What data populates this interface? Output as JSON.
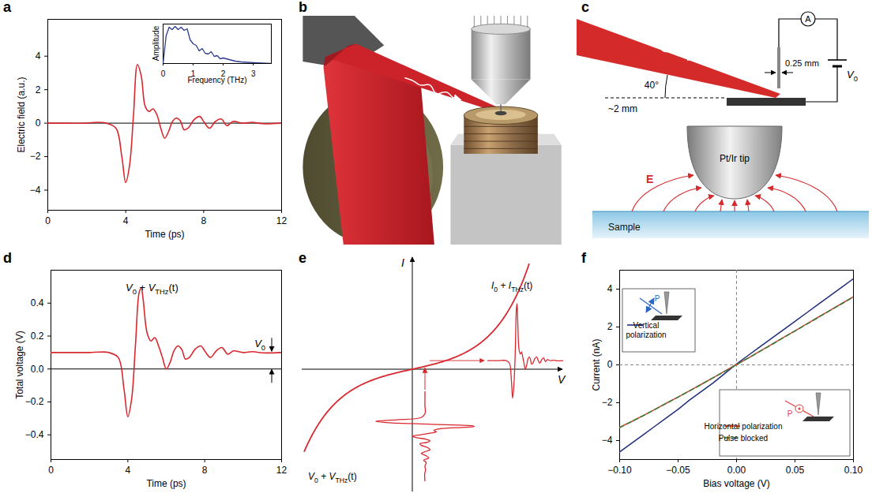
{
  "panel_labels": [
    "a",
    "b",
    "c",
    "d",
    "e",
    "f"
  ],
  "chart_data": [
    {
      "type": "line",
      "x_label": "Time (ps)",
      "y_label": "Electric field (a.u.)",
      "x": [
        0,
        1,
        2,
        2.5,
        3,
        3.5,
        3.8,
        4.0,
        4.2,
        4.4,
        4.6,
        4.8,
        5.0,
        5.2,
        5.4,
        5.6,
        5.8,
        6.0,
        6.2,
        6.4,
        6.6,
        6.8,
        7.0,
        7.2,
        7.5,
        7.8,
        8.0,
        8.3,
        8.6,
        8.9,
        9.2,
        9.5,
        10,
        10.5,
        11,
        12
      ],
      "values": [
        0,
        0,
        0,
        0.05,
        0,
        -0.3,
        -2.0,
        -3.55,
        -2.5,
        0.5,
        3.5,
        2.8,
        1.0,
        0.7,
        0.85,
        0.5,
        -0.3,
        -0.9,
        -0.5,
        0.1,
        0.3,
        0.15,
        -0.4,
        -0.3,
        0.2,
        0.4,
        0.1,
        -0.3,
        0.1,
        0.25,
        -0.15,
        0.1,
        0,
        0.05,
        -0.03,
        0
      ],
      "color": "#d8282f",
      "xlim": [
        0,
        12
      ],
      "xticks": [
        0,
        4,
        8,
        12
      ],
      "ylim": [
        -5.2,
        6.2
      ],
      "yticks": [
        {
          "value": -4,
          "label": "−4"
        },
        {
          "value": -2,
          "label": "−2"
        },
        0,
        2,
        4
      ]
    },
    {
      "type": "line",
      "x_label": "Frequency (THz)",
      "y_label": "Amplitude",
      "x": [
        0,
        0.1,
        0.2,
        0.3,
        0.4,
        0.5,
        0.6,
        0.7,
        0.8,
        0.9,
        1.0,
        1.1,
        1.2,
        1.3,
        1.4,
        1.5,
        1.6,
        1.7,
        1.8,
        1.9,
        2.0,
        2.2,
        2.4,
        2.6,
        2.8,
        3.0,
        3.3,
        3.6
      ],
      "values": [
        0,
        3.5,
        4.6,
        4.3,
        4.7,
        4.3,
        4.6,
        4.2,
        4.4,
        3.0,
        2.5,
        2.3,
        1.6,
        1.9,
        1.3,
        1.2,
        1.5,
        0.9,
        1.0,
        0.6,
        0.7,
        0.5,
        0.3,
        0.2,
        0.15,
        0.1,
        0.05,
        0
      ],
      "color": "#2e3d8f",
      "xlim": [
        0,
        3.6
      ],
      "xticks": [
        0,
        1,
        2,
        3
      ],
      "ylim": [
        0,
        5
      ],
      "tick_labels": "x"
    },
    {
      "type": "line",
      "x_label": "Time (ps)",
      "y_label": "Total voltage (V)",
      "annotations": [
        "V0 + VTHz(t)",
        "V0"
      ],
      "x": [
        0,
        1,
        2,
        2.5,
        3,
        3.5,
        3.8,
        4.0,
        4.2,
        4.4,
        4.6,
        4.7,
        4.8,
        5.0,
        5.2,
        5.4,
        5.6,
        5.8,
        6.0,
        6.2,
        6.4,
        6.6,
        6.8,
        7.0,
        7.2,
        7.5,
        7.8,
        8.0,
        8.3,
        8.6,
        8.9,
        9.2,
        9.5,
        10,
        10.5,
        11,
        12
      ],
      "values": [
        0.1,
        0.1,
        0.1,
        0.103,
        0.1,
        0.07,
        -0.12,
        -0.29,
        -0.18,
        0.15,
        0.47,
        0.49,
        0.42,
        0.22,
        0.17,
        0.19,
        0.14,
        0.07,
        0.0,
        0.04,
        0.11,
        0.14,
        0.12,
        0.06,
        0.07,
        0.12,
        0.14,
        0.11,
        0.07,
        0.11,
        0.13,
        0.09,
        0.11,
        0.1,
        0.105,
        0.098,
        0.1
      ],
      "color": "#d8282f",
      "xlim": [
        0,
        12
      ],
      "xticks": [
        0,
        4,
        8,
        12
      ],
      "ylim": [
        -0.55,
        0.6
      ],
      "yticks": [
        {
          "value": -0.4,
          "label": "−0.4"
        },
        {
          "value": -0.2,
          "label": "−0.2"
        },
        {
          "value": 0,
          "label": "0.0"
        },
        {
          "value": 0.2,
          "label": "0.2"
        },
        {
          "value": 0.4,
          "label": "0.4"
        }
      ]
    },
    {
      "type": "line",
      "x_label": "Bias voltage (V)",
      "y_label": "Current (nA)",
      "inset_labels": [
        "P",
        "P"
      ],
      "x": [
        -0.1,
        -0.09,
        -0.08,
        -0.07,
        -0.06,
        -0.05,
        -0.04,
        -0.03,
        -0.02,
        -0.01,
        0,
        0.01,
        0.02,
        0.03,
        0.04,
        0.05,
        0.06,
        0.07,
        0.08,
        0.09,
        0.1
      ],
      "series": [
        {
          "name": "Vertical polarization",
          "color": "#1f2d7a",
          "line_style": "solid",
          "legend": "left",
          "values": [
            -4.6,
            -4.15,
            -3.7,
            -3.25,
            -2.8,
            -2.35,
            -1.85,
            -1.4,
            -0.95,
            -0.45,
            0.05,
            0.5,
            0.95,
            1.4,
            1.85,
            2.3,
            2.75,
            3.2,
            3.65,
            4.1,
            4.55
          ]
        },
        {
          "name": "Horizontal polarization",
          "color": "#e0413a",
          "line_style": "solid",
          "legend": "lower right",
          "values": [
            -3.3,
            -3.0,
            -2.68,
            -2.36,
            -2.02,
            -1.7,
            -1.36,
            -1.02,
            -0.68,
            -0.33,
            0.02,
            0.36,
            0.72,
            1.08,
            1.44,
            1.8,
            2.16,
            2.52,
            2.88,
            3.24,
            3.6
          ]
        },
        {
          "name": "Pulse blocked",
          "color": "#2e7d32",
          "line_style": "dashed",
          "legend": "lower right",
          "values": [
            -3.32,
            -3.0,
            -2.69,
            -2.36,
            -2.03,
            -1.7,
            -1.37,
            -1.03,
            -0.68,
            -0.34,
            0.01,
            0.36,
            0.71,
            1.07,
            1.43,
            1.79,
            2.15,
            2.51,
            2.87,
            3.23,
            3.58
          ]
        }
      ],
      "xlim": [
        -0.1,
        0.1
      ],
      "xticks": [
        {
          "value": -0.1,
          "label": "−0.10"
        },
        {
          "value": -0.05,
          "label": "−0.05"
        },
        {
          "value": 0,
          "label": "0.00"
        },
        {
          "value": 0.05,
          "label": "0.05"
        },
        {
          "value": 0.1,
          "label": "0.10"
        }
      ],
      "ylim": [
        -5,
        5
      ],
      "yticks": [
        {
          "value": -4,
          "label": "−4"
        },
        {
          "value": -2,
          "label": "−2"
        },
        0,
        2,
        4
      ]
    }
  ],
  "diagrams": {
    "c": {
      "angle_label": "40°",
      "distance_label": "~2 mm",
      "gap_label": "0.25 mm",
      "ammeter_label": "A",
      "bias_label": "V0",
      "tip_label": "Pt/Ir tip",
      "field_label": "E",
      "sample_label": "Sample"
    },
    "e": {
      "current_axis": "I",
      "voltage_axis": "V",
      "output_label": "I0 + ITHz(t)",
      "input_label": "V0 + VTHz(t)"
    }
  }
}
